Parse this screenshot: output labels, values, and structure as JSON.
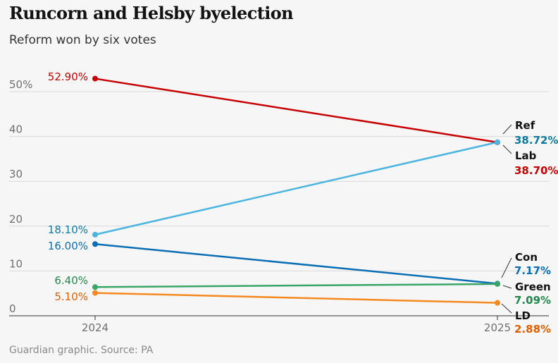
{
  "title": "Runcorn and Helsby byelection",
  "subtitle": "Reform won by six votes",
  "footer": "Guardian graphic. Source: PA",
  "chart_data": {
    "type": "line",
    "title": "Runcorn and Helsby byelection",
    "subtitle": "Reform won by six votes",
    "x": [
      "2024",
      "2025"
    ],
    "y_ticks": [
      "50%",
      "40",
      "30",
      "20",
      "10",
      "0"
    ],
    "ylim": [
      0,
      55
    ],
    "grid": true,
    "legend": "direct labels at right end",
    "series": [
      {
        "name": "Lab",
        "values": [
          52.9,
          38.7
        ],
        "start_label": "52.90%",
        "end_label": "38.70%",
        "color": "#c70000"
      },
      {
        "name": "Ref",
        "values": [
          18.1,
          38.72
        ],
        "start_label": "18.10%",
        "end_label": "38.72%",
        "color": "#4bb5e0",
        "text_color": "#0c7a9e"
      },
      {
        "name": "Con",
        "values": [
          16.0,
          7.17
        ],
        "start_label": "16.00%",
        "end_label": "7.17%",
        "color": "#0a6eb4",
        "text_color": "#0a6eb4"
      },
      {
        "name": "Green",
        "values": [
          6.4,
          7.09
        ],
        "start_label": "6.40%",
        "end_label": "7.09%",
        "color": "#39a566",
        "text_color": "#22874d"
      },
      {
        "name": "LD",
        "values": [
          5.1,
          2.88
        ],
        "start_label": "5.10%",
        "end_label": "2.88%",
        "color": "#f5891f",
        "text_color": "#e05e00"
      }
    ]
  }
}
